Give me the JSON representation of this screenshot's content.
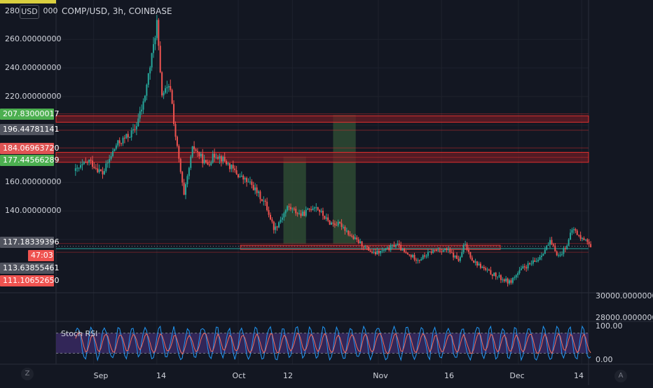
{
  "symbol": {
    "title": "COMP/USD, 3h, COINBASE",
    "currency": "USD",
    "top_label": "280.",
    "top_label_tail": "000"
  },
  "price_axis": {
    "labels": [
      "260.00000000",
      "240.00000000",
      "220.00000000",
      "160.00000000",
      "140.00000000"
    ],
    "tags": [
      {
        "text": "207.83000017",
        "color": "#4caf50"
      },
      {
        "text": "196.44781141",
        "color": "#50535e"
      },
      {
        "text": "184.06963720",
        "color": "#e05454"
      },
      {
        "text": "177.44566289",
        "color": "#4caf50"
      },
      {
        "text": "117.18339396",
        "color": "#50535e"
      },
      {
        "text": "47:03",
        "color": "#ef5350"
      },
      {
        "text": "113.63855461",
        "color": "#50535e"
      },
      {
        "text": "111.10652650",
        "color": "#ef5350"
      }
    ]
  },
  "volume_axis": {
    "labels": [
      "30000.00000000",
      "28000.00000000"
    ]
  },
  "time_axis": {
    "labels": [
      "Sep",
      "14",
      "Oct",
      "12",
      "Nov",
      "16",
      "Dec",
      "14"
    ]
  },
  "indicator": {
    "name": "Stoch RSI",
    "scale_top": "100.00",
    "scale_bottom": "0.00"
  },
  "buttons": {
    "timezone": "Z",
    "auto_scale": "A"
  },
  "colors": {
    "background": "#131722",
    "up": "#26a69a",
    "down": "#ef5350",
    "zone_fill": "#6d1c25",
    "zone_border": "#e0302f",
    "target_box": "#2e4a33",
    "stoch_band": "#3b2a66",
    "stoch_k": "#2196f3",
    "stoch_d": "#ef6c5e",
    "current_price_line": "#26a69a"
  },
  "chart_data": {
    "type": "candlestick",
    "title": "COMP/USD, 3h, COINBASE",
    "ylim": [
      100,
      275
    ],
    "levels": [
      207.83,
      196.45,
      184.07,
      177.45,
      117.18,
      113.64,
      111.11
    ],
    "zones": [
      {
        "low": 202.0,
        "high": 206.5
      },
      {
        "low": 174.0,
        "high": 181.0
      },
      {
        "low": 113.0,
        "high": 116.0
      }
    ],
    "path": [
      {
        "d": -6,
        "p": 168
      },
      {
        "d": -3,
        "p": 175
      },
      {
        "d": 0,
        "p": 166
      },
      {
        "d": 3,
        "p": 186
      },
      {
        "d": 7,
        "p": 196
      },
      {
        "d": 9,
        "p": 215
      },
      {
        "d": 11,
        "p": 250
      },
      {
        "d": 12,
        "p": 272
      },
      {
        "d": 13,
        "p": 222
      },
      {
        "d": 15,
        "p": 226
      },
      {
        "d": 16,
        "p": 195
      },
      {
        "d": 18,
        "p": 150
      },
      {
        "d": 20,
        "p": 185
      },
      {
        "d": 23,
        "p": 172
      },
      {
        "d": 25,
        "p": 180
      },
      {
        "d": 27,
        "p": 175
      },
      {
        "d": 30,
        "p": 165
      },
      {
        "d": 33,
        "p": 158
      },
      {
        "d": 36,
        "p": 145
      },
      {
        "d": 38,
        "p": 127
      },
      {
        "d": 41,
        "p": 143
      },
      {
        "d": 44,
        "p": 137
      },
      {
        "d": 47,
        "p": 144
      },
      {
        "d": 50,
        "p": 132
      },
      {
        "d": 53,
        "p": 130
      },
      {
        "d": 55,
        "p": 122
      },
      {
        "d": 58,
        "p": 115
      },
      {
        "d": 60,
        "p": 110
      },
      {
        "d": 63,
        "p": 113
      },
      {
        "d": 65,
        "p": 117
      },
      {
        "d": 67,
        "p": 110
      },
      {
        "d": 70,
        "p": 106
      },
      {
        "d": 73,
        "p": 112
      },
      {
        "d": 76,
        "p": 113
      },
      {
        "d": 79,
        "p": 105
      },
      {
        "d": 80,
        "p": 117
      },
      {
        "d": 82,
        "p": 105
      },
      {
        "d": 85,
        "p": 98
      },
      {
        "d": 88,
        "p": 93
      },
      {
        "d": 90,
        "p": 90
      },
      {
        "d": 93,
        "p": 100
      },
      {
        "d": 96,
        "p": 105
      },
      {
        "d": 99,
        "p": 118
      },
      {
        "d": 101,
        "p": 108
      },
      {
        "d": 103,
        "p": 118
      },
      {
        "d": 104,
        "p": 128
      },
      {
        "d": 106,
        "p": 120
      },
      {
        "d": 107,
        "p": 121
      },
      {
        "d": 108,
        "p": 114
      }
    ],
    "target_boxes": [
      {
        "d0": 40,
        "d1": 45,
        "low": 117,
        "high": 178
      },
      {
        "d0": 51,
        "d1": 56,
        "low": 117,
        "high": 207
      }
    ],
    "x_ticks": [
      "Sep",
      "14",
      "Oct",
      "12",
      "Nov",
      "16",
      "Dec",
      "14"
    ],
    "stoch_rsi": {
      "range": [
        0,
        100
      ],
      "band": [
        20,
        80
      ]
    }
  }
}
